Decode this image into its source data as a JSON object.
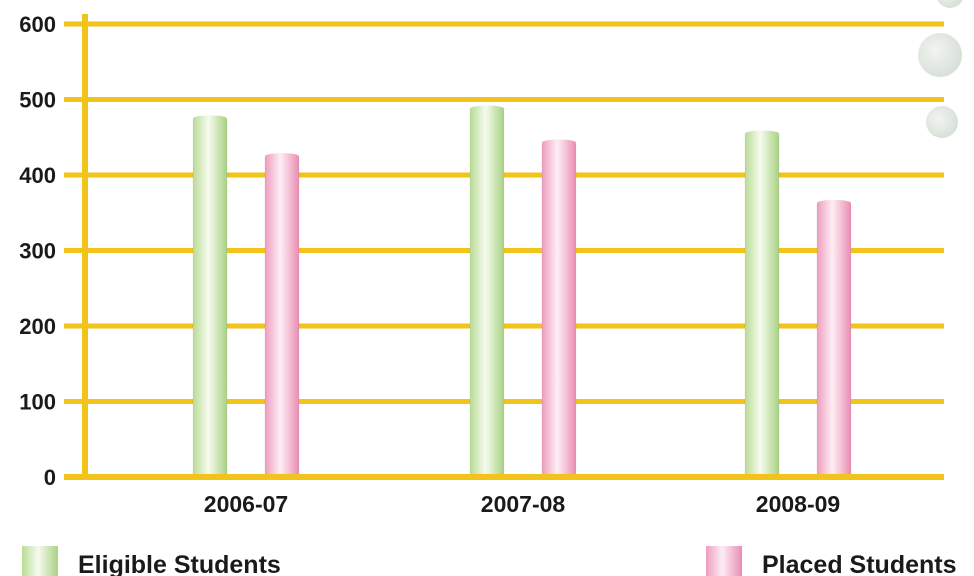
{
  "chart_data": {
    "type": "bar",
    "categories": [
      "2006-07",
      "2007-08",
      "2008-09"
    ],
    "series": [
      {
        "name": "Eligible Students",
        "values": [
          475,
          488,
          455
        ]
      },
      {
        "name": "Placed Students",
        "values": [
          425,
          443,
          363
        ]
      }
    ],
    "ylim": [
      0,
      600
    ],
    "yticks": [
      "0",
      "100",
      "200",
      "300",
      "400",
      "500",
      "600"
    ],
    "grid": true,
    "legend": "bottom",
    "colors": {
      "grid": "#f2c318",
      "axis": "#f2c318",
      "eligible": "#d6eec0",
      "placed": "#f6bfd6"
    }
  }
}
